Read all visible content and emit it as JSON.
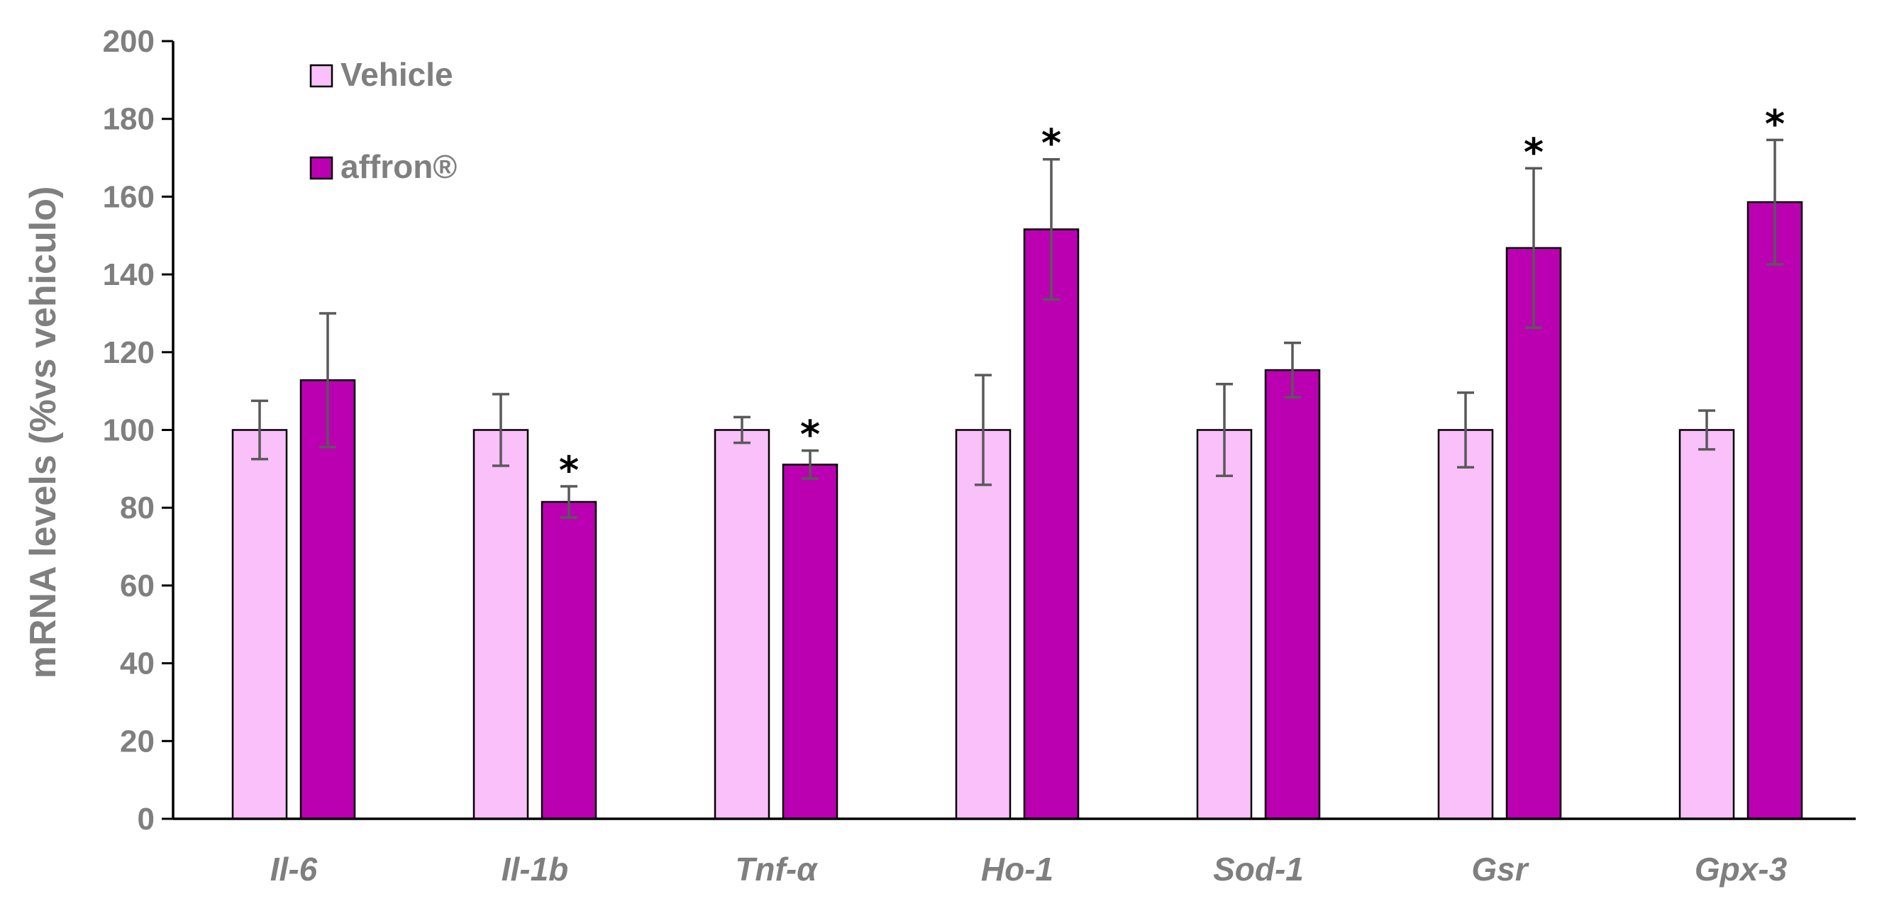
{
  "chart_data": {
    "type": "bar",
    "title": "",
    "xlabel": "",
    "ylabel": "mRNA levels (%vs vehiculo)",
    "ylim": [
      0,
      200
    ],
    "yticks": [
      0,
      20,
      40,
      60,
      80,
      100,
      120,
      140,
      160,
      180,
      200
    ],
    "grid": false,
    "legend_position": "top-left",
    "categories": [
      "Il-6",
      "Il-1b",
      "Tnf-α",
      "Ho-1",
      "Sod-1",
      "Gsr",
      "Gpx-3"
    ],
    "series": [
      {
        "name": "Vehicle",
        "color": "#f9c0f9",
        "values": [
          100,
          100,
          100,
          100,
          100,
          100,
          100
        ],
        "errors": [
          7.5,
          9.2,
          3.3,
          14.1,
          11.8,
          9.6,
          5.0
        ],
        "significance": [
          "",
          "",
          "",
          "",
          "",
          "",
          ""
        ]
      },
      {
        "name": "affron®",
        "color": "#bb00b2",
        "values": [
          112.8,
          81.5,
          91.1,
          151.6,
          115.4,
          146.8,
          158.6
        ],
        "errors": [
          17.2,
          4.0,
          3.6,
          18.0,
          7.0,
          20.5,
          16.0
        ],
        "significance": [
          "",
          "*",
          "*",
          "*",
          "",
          "*",
          "*"
        ]
      }
    ]
  },
  "colors": {
    "axis": "#000000",
    "text": "#7f7f7f",
    "error_bar": "#595959",
    "bar_outline": "#000000"
  }
}
